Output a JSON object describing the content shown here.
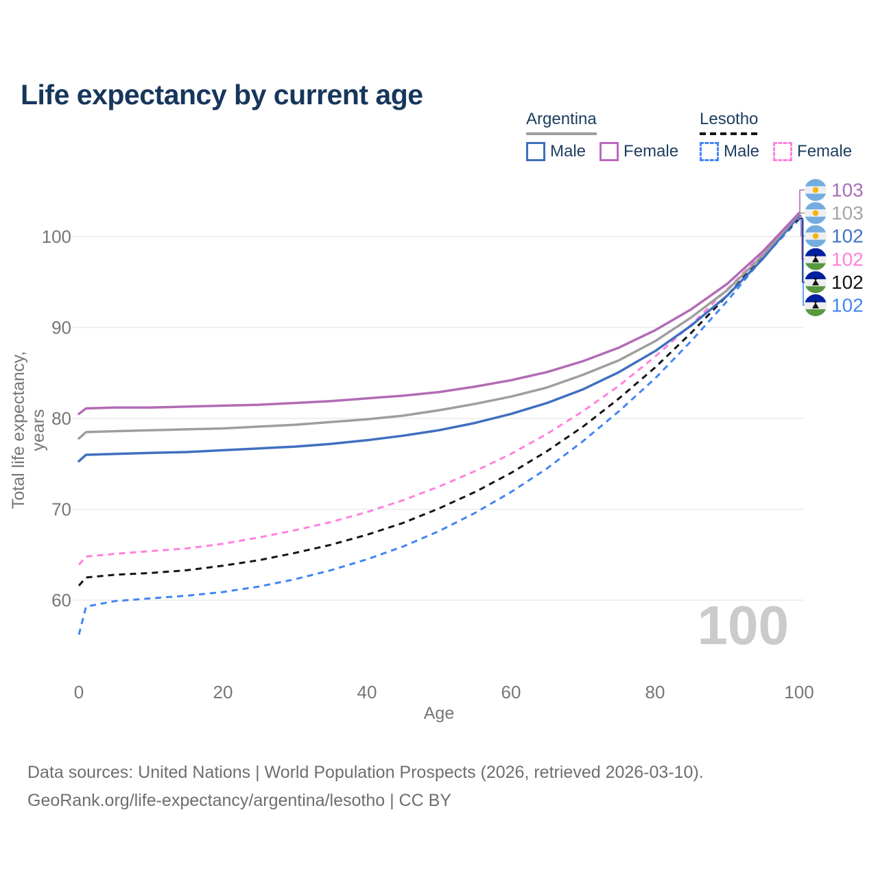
{
  "page": {
    "title": "Life expectancy by current age",
    "watermark": "100",
    "footer_line1": "Data sources: United Nations | World Population Prospects (2026, retrieved 2026-03-10).",
    "footer_line2": "GeoRank.org/life-expectancy/argentina/lesotho | CC BY"
  },
  "legend": {
    "groups": [
      {
        "country": "Argentina",
        "underline_style": "solid",
        "line_color": "#9e9e9e",
        "items": [
          {
            "label": "Male",
            "color": "#3f6fbf",
            "swatch_style": "solid"
          },
          {
            "label": "Female",
            "color": "#bd68bd",
            "swatch_style": "solid"
          }
        ]
      },
      {
        "country": "Lesotho",
        "underline_style": "dashed",
        "line_color": "#141414",
        "items": [
          {
            "label": "Male",
            "color": "#4285f4",
            "swatch_style": "dashed"
          },
          {
            "label": "Female",
            "color": "#ff80de",
            "swatch_style": "dashed"
          }
        ]
      }
    ]
  },
  "flags": {
    "argentina": {
      "band": "#74acdf",
      "middle": "#efefef",
      "sun": "#f6b40e"
    },
    "lesotho": {
      "top": "#00209f",
      "middle": "#efefef",
      "bottom": "#58993f",
      "hat": "#141414"
    }
  },
  "chart_data": {
    "type": "line",
    "title": "Life expectancy by current age",
    "xlabel": "Age",
    "ylabel": "Total life expectancy, years",
    "xlim": [
      0,
      100
    ],
    "ylim": [
      55,
      104
    ],
    "xticks": [
      0,
      20,
      40,
      60,
      80,
      100
    ],
    "yticks": [
      60,
      70,
      80,
      90,
      100
    ],
    "grid": "horizontal",
    "axis_text_color": "#767676",
    "grid_color": "#ebebeb",
    "legend_position": "top-right",
    "ages": [
      0,
      1,
      5,
      10,
      15,
      20,
      25,
      30,
      35,
      40,
      45,
      50,
      55,
      60,
      65,
      70,
      75,
      80,
      85,
      90,
      95,
      100
    ],
    "series": [
      {
        "id": "argentina-female",
        "country": "Argentina",
        "sex": "Female",
        "color": "#b26bb4",
        "label_color": "#a96cb8",
        "dash": false,
        "end_label": "103",
        "flag": "argentina",
        "values": [
          80.5,
          81.1,
          81.2,
          81.2,
          81.3,
          81.4,
          81.5,
          81.7,
          81.9,
          82.2,
          82.5,
          82.9,
          83.5,
          84.2,
          85.1,
          86.3,
          87.8,
          89.7,
          92.0,
          94.8,
          98.4,
          102.6
        ]
      },
      {
        "id": "argentina-both-sexes",
        "country": "Argentina",
        "sex": "Both sexes",
        "color": "#9e9e9e",
        "label_color": "#a6a6a6",
        "dash": false,
        "end_label": "103",
        "flag": "argentina",
        "values": [
          77.8,
          78.5,
          78.6,
          78.7,
          78.8,
          78.9,
          79.1,
          79.3,
          79.6,
          79.9,
          80.3,
          80.9,
          81.6,
          82.4,
          83.4,
          84.8,
          86.4,
          88.5,
          91.1,
          94.1,
          98.0,
          102.5
        ]
      },
      {
        "id": "argentina-male",
        "country": "Argentina",
        "sex": "Male",
        "color": "#3f6fbf",
        "label_color": "#4273c8",
        "dash": false,
        "end_label": "102",
        "flag": "argentina",
        "values": [
          75.3,
          76.0,
          76.1,
          76.2,
          76.3,
          76.5,
          76.7,
          76.9,
          77.2,
          77.6,
          78.1,
          78.7,
          79.5,
          80.5,
          81.7,
          83.2,
          85.1,
          87.4,
          90.2,
          93.5,
          97.6,
          102.3
        ]
      },
      {
        "id": "lesotho-female",
        "country": "Lesotho",
        "sex": "Female",
        "color": "#ff80de",
        "label_color": "#ff80de",
        "dash": true,
        "end_label": "102",
        "flag": "lesotho",
        "values": [
          63.9,
          64.8,
          65.1,
          65.4,
          65.7,
          66.2,
          66.9,
          67.7,
          68.6,
          69.7,
          71.0,
          72.5,
          74.2,
          76.1,
          78.3,
          80.8,
          83.6,
          86.8,
          90.3,
          94.2,
          98.2,
          102.1
        ]
      },
      {
        "id": "lesotho-both-sexes",
        "country": "Lesotho",
        "sex": "Both sexes",
        "color": "#141414",
        "label_color": "#141414",
        "dash": true,
        "end_label": "102",
        "flag": "lesotho",
        "values": [
          61.6,
          62.5,
          62.8,
          63.0,
          63.3,
          63.8,
          64.4,
          65.2,
          66.1,
          67.2,
          68.5,
          70.1,
          71.9,
          74.0,
          76.4,
          79.1,
          82.2,
          85.6,
          89.4,
          93.5,
          98.0,
          102.0
        ]
      },
      {
        "id": "lesotho-male",
        "country": "Lesotho",
        "sex": "Male",
        "color": "#4285f4",
        "label_color": "#4285f4",
        "dash": true,
        "end_label": "102",
        "flag": "lesotho",
        "values": [
          56.2,
          59.3,
          59.9,
          60.2,
          60.5,
          60.9,
          61.5,
          62.3,
          63.3,
          64.5,
          65.9,
          67.6,
          69.6,
          71.9,
          74.5,
          77.5,
          80.8,
          84.4,
          88.5,
          92.9,
          97.7,
          101.9
        ]
      }
    ]
  }
}
